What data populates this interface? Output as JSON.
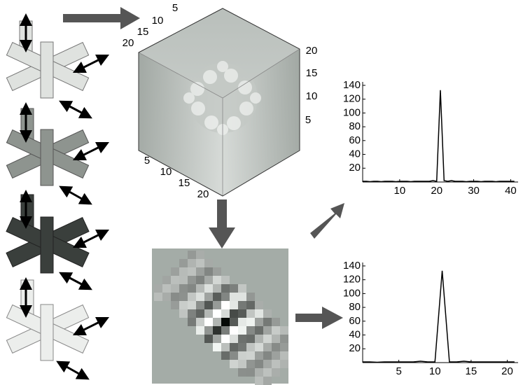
{
  "cube": {
    "left_ticks": [
      20,
      15,
      10,
      5
    ],
    "right_ticks": [
      20,
      15,
      10,
      5
    ],
    "bottom_ticks": [
      5,
      10,
      15,
      20
    ]
  },
  "chart_data": [
    {
      "type": "line",
      "color": "#000000",
      "x": [
        0,
        1,
        2,
        3,
        4,
        5,
        6,
        7,
        8,
        9,
        10,
        11,
        12,
        13,
        14,
        15,
        16,
        17,
        18,
        19,
        20,
        21,
        22,
        23,
        24,
        25,
        26,
        27,
        28,
        29,
        30,
        31,
        32,
        33,
        34,
        35,
        36,
        37,
        38,
        39,
        40,
        41
      ],
      "values": [
        1,
        1,
        0.5,
        1,
        1,
        0.5,
        1,
        1,
        1,
        0.5,
        1,
        1,
        1,
        0.5,
        1,
        1,
        1,
        1,
        1,
        2,
        1,
        133,
        2,
        1,
        2,
        1,
        1,
        1,
        0.5,
        1,
        1,
        1,
        0.5,
        1,
        1,
        1,
        0.5,
        1,
        1,
        1,
        1,
        1
      ],
      "xlim": [
        0,
        42
      ],
      "ylim": [
        0,
        145
      ],
      "xticks": [
        10,
        20,
        30,
        40
      ],
      "yticks": [
        20,
        40,
        60,
        80,
        100,
        120,
        140
      ]
    },
    {
      "type": "line",
      "color": "#000000",
      "x": [
        0,
        1,
        2,
        3,
        4,
        5,
        6,
        7,
        8,
        9,
        10,
        11,
        12,
        13,
        14,
        15,
        16,
        17,
        18,
        19,
        20,
        21
      ],
      "values": [
        1,
        1,
        0.5,
        1,
        1,
        1,
        1,
        1,
        2,
        1,
        1,
        133,
        1,
        1,
        2,
        1,
        1,
        1,
        1,
        1,
        1,
        1
      ],
      "xlim": [
        0,
        21.5
      ],
      "ylim": [
        0,
        145
      ],
      "xticks": [
        5,
        10,
        15,
        20
      ],
      "yticks": [
        20,
        40,
        60,
        80,
        100,
        120,
        140
      ]
    }
  ]
}
